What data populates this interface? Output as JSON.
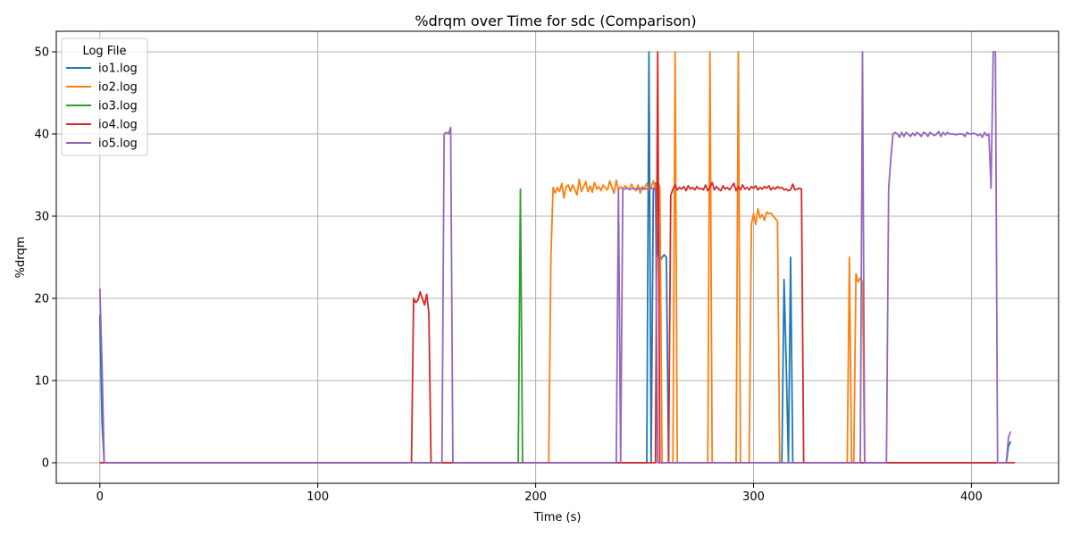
{
  "chart_data": {
    "type": "line",
    "title": "%drqm over Time for sdc (Comparison)",
    "xlabel": "Time (s)",
    "ylabel": "%drqm",
    "xlim": [
      -20,
      440
    ],
    "ylim": [
      -2.5,
      52.5
    ],
    "xticks": [
      0,
      100,
      200,
      300,
      400
    ],
    "yticks": [
      0,
      10,
      20,
      30,
      40,
      50
    ],
    "grid": true,
    "legend": {
      "title": "Log File",
      "placement": "top-left"
    },
    "series": [
      {
        "name": "io1.log",
        "color": "#1f77b4",
        "points": [
          [
            0,
            18
          ],
          [
            1,
            5
          ],
          [
            2,
            0
          ],
          [
            251,
            0
          ],
          [
            252,
            50
          ],
          [
            253,
            0
          ],
          [
            254,
            33
          ],
          [
            255,
            34
          ],
          [
            256,
            25.5
          ],
          [
            257,
            24.5
          ],
          [
            258,
            25
          ],
          [
            259,
            25.3
          ],
          [
            260,
            25
          ],
          [
            261,
            0
          ],
          [
            313,
            0
          ],
          [
            314,
            22.3
          ],
          [
            315,
            12
          ],
          [
            316,
            0
          ],
          [
            317,
            25
          ],
          [
            318,
            0
          ],
          [
            416,
            0
          ],
          [
            417,
            2
          ],
          [
            418,
            2.6
          ]
        ]
      },
      {
        "name": "io2.log",
        "color": "#ff7f0e",
        "points": [
          [
            0,
            0
          ],
          [
            206,
            0
          ],
          [
            207,
            25
          ],
          [
            208,
            33.5
          ],
          [
            209,
            32.8
          ],
          [
            210,
            33.5
          ],
          [
            211,
            33
          ],
          [
            212,
            34
          ],
          [
            213,
            32.2
          ],
          [
            214,
            33.6
          ],
          [
            215,
            33.8
          ],
          [
            216,
            33
          ],
          [
            217,
            33.8
          ],
          [
            218,
            33.2
          ],
          [
            219,
            32.6
          ],
          [
            220,
            34.5
          ],
          [
            221,
            33
          ],
          [
            222,
            33.6
          ],
          [
            223,
            34.2
          ],
          [
            224,
            33
          ],
          [
            225,
            33.7
          ],
          [
            226,
            32.9
          ],
          [
            227,
            34.1
          ],
          [
            228,
            33.3
          ],
          [
            229,
            33.6
          ],
          [
            230,
            33.1
          ],
          [
            231,
            33.8
          ],
          [
            232,
            33.4
          ],
          [
            233,
            33.2
          ],
          [
            234,
            34.3
          ],
          [
            235,
            33.5
          ],
          [
            236,
            32.8
          ],
          [
            237,
            34.4
          ],
          [
            238,
            33.2
          ],
          [
            239,
            33.6
          ],
          [
            240,
            33.3
          ],
          [
            241,
            33.7
          ],
          [
            242,
            33.5
          ],
          [
            243,
            33.2
          ],
          [
            244,
            33.9
          ],
          [
            245,
            33.4
          ],
          [
            246,
            33.1
          ],
          [
            247,
            33.8
          ],
          [
            248,
            32.8
          ],
          [
            249,
            33.6
          ],
          [
            250,
            33.3
          ],
          [
            251,
            34
          ],
          [
            252,
            33.2
          ],
          [
            253,
            33.5
          ],
          [
            254,
            34.3
          ],
          [
            255,
            33.4
          ],
          [
            256,
            34.2
          ],
          [
            257,
            33.5
          ],
          [
            258,
            0
          ],
          [
            263,
            0
          ],
          [
            264,
            50
          ],
          [
            265,
            0
          ],
          [
            279,
            0
          ],
          [
            280,
            50
          ],
          [
            281,
            0
          ],
          [
            292,
            0
          ],
          [
            293,
            50
          ],
          [
            294,
            0
          ],
          [
            298,
            0
          ],
          [
            299,
            29
          ],
          [
            300,
            30.3
          ],
          [
            301,
            29
          ],
          [
            302,
            30.9
          ],
          [
            303,
            29.8
          ],
          [
            304,
            30.2
          ],
          [
            305,
            29.5
          ],
          [
            306,
            30.5
          ],
          [
            307,
            30.3
          ],
          [
            308,
            30.4
          ],
          [
            309,
            30
          ],
          [
            310,
            29.7
          ],
          [
            311,
            29.4
          ],
          [
            312,
            0
          ],
          [
            343,
            0
          ],
          [
            344,
            25
          ],
          [
            345,
            0
          ],
          [
            346,
            0
          ],
          [
            347,
            23
          ],
          [
            348,
            22
          ],
          [
            349,
            22.5
          ],
          [
            350,
            22
          ],
          [
            351,
            0
          ]
        ]
      },
      {
        "name": "io3.log",
        "color": "#2ca02c",
        "points": [
          [
            0,
            0
          ],
          [
            192,
            0
          ],
          [
            193,
            33.3
          ],
          [
            194,
            0
          ]
        ]
      },
      {
        "name": "io4.log",
        "color": "#d62728",
        "points": [
          [
            0,
            0
          ],
          [
            143,
            0
          ],
          [
            144,
            20
          ],
          [
            145,
            19.5
          ],
          [
            146,
            19.8
          ],
          [
            147,
            20.8
          ],
          [
            148,
            20
          ],
          [
            149,
            19.2
          ],
          [
            150,
            20.5
          ],
          [
            151,
            18.2
          ],
          [
            152,
            0
          ],
          [
            156,
            0
          ],
          [
            157,
            0
          ],
          [
            162,
            0
          ],
          [
            163,
            0
          ],
          [
            255,
            0
          ],
          [
            256,
            50
          ],
          [
            257,
            0
          ],
          [
            261,
            0
          ],
          [
            262,
            32.5
          ],
          [
            263,
            33.3
          ],
          [
            264,
            33.8
          ],
          [
            265,
            33.2
          ],
          [
            266,
            33.5
          ],
          [
            267,
            33.3
          ],
          [
            268,
            33.6
          ],
          [
            269,
            33.1
          ],
          [
            270,
            33.7
          ],
          [
            271,
            33.3
          ],
          [
            272,
            33.5
          ],
          [
            273,
            33.2
          ],
          [
            274,
            33.6
          ],
          [
            275,
            33.3
          ],
          [
            276,
            33.4
          ],
          [
            277,
            33.2
          ],
          [
            278,
            33.8
          ],
          [
            279,
            33.1
          ],
          [
            280,
            33.5
          ],
          [
            281,
            34.1
          ],
          [
            282,
            33.2
          ],
          [
            283,
            33.6
          ],
          [
            284,
            33.3
          ],
          [
            285,
            33.1
          ],
          [
            286,
            33.7
          ],
          [
            287,
            33.3
          ],
          [
            288,
            33.5
          ],
          [
            289,
            33.2
          ],
          [
            290,
            33.6
          ],
          [
            291,
            34
          ],
          [
            292,
            33.1
          ],
          [
            293,
            33.6
          ],
          [
            294,
            33.2
          ],
          [
            295,
            33.8
          ],
          [
            296,
            33.3
          ],
          [
            297,
            33.5
          ],
          [
            298,
            33.2
          ],
          [
            299,
            33.6
          ],
          [
            300,
            33.4
          ],
          [
            301,
            33.7
          ],
          [
            302,
            33.2
          ],
          [
            303,
            33.5
          ],
          [
            304,
            33.3
          ],
          [
            305,
            33.6
          ],
          [
            306,
            33.4
          ],
          [
            307,
            33.7
          ],
          [
            308,
            33.2
          ],
          [
            309,
            33.5
          ],
          [
            310,
            33.3
          ],
          [
            311,
            33.6
          ],
          [
            312,
            33.4
          ],
          [
            313,
            33.5
          ],
          [
            314,
            33.2
          ],
          [
            315,
            33.3
          ],
          [
            316,
            33.1
          ],
          [
            317,
            33.2
          ],
          [
            318,
            33.9
          ],
          [
            319,
            33.2
          ],
          [
            320,
            33.3
          ],
          [
            321,
            33.4
          ],
          [
            322,
            33.3
          ],
          [
            323,
            0
          ],
          [
            350,
            0
          ],
          [
            351,
            0
          ],
          [
            420,
            0
          ]
        ]
      },
      {
        "name": "io5.log",
        "color": "#9467bd",
        "points": [
          [
            0,
            21.2
          ],
          [
            1,
            12
          ],
          [
            2,
            0
          ],
          [
            157,
            0
          ],
          [
            158,
            40
          ],
          [
            159,
            40.2
          ],
          [
            160,
            40
          ],
          [
            161,
            40.8
          ],
          [
            162,
            0
          ],
          [
            237,
            0
          ],
          [
            238,
            33.3
          ],
          [
            239,
            0
          ],
          [
            240,
            33.3
          ],
          [
            241,
            33.3
          ],
          [
            242,
            33.4
          ],
          [
            243,
            33.3
          ],
          [
            244,
            33.3
          ],
          [
            245,
            33.4
          ],
          [
            246,
            33.3
          ],
          [
            247,
            33.3
          ],
          [
            248,
            33.4
          ],
          [
            249,
            33.3
          ],
          [
            250,
            33.3
          ],
          [
            251,
            33.3
          ],
          [
            252,
            33.4
          ],
          [
            253,
            33.3
          ],
          [
            254,
            33.4
          ],
          [
            255,
            33.3
          ],
          [
            256,
            0
          ],
          [
            349,
            0
          ],
          [
            350,
            50
          ],
          [
            351,
            0
          ],
          [
            361,
            0
          ],
          [
            362,
            33.3
          ],
          [
            363,
            37
          ],
          [
            364,
            40
          ],
          [
            365,
            40.2
          ],
          [
            366,
            40
          ],
          [
            367,
            39.6
          ],
          [
            368,
            40.2
          ],
          [
            369,
            39.7
          ],
          [
            370,
            40.2
          ],
          [
            371,
            40
          ],
          [
            372,
            39.7
          ],
          [
            373,
            40.1
          ],
          [
            374,
            39.8
          ],
          [
            375,
            40.2
          ],
          [
            376,
            40
          ],
          [
            377,
            39.7
          ],
          [
            378,
            40.2
          ],
          [
            379,
            40.1
          ],
          [
            380,
            39.7
          ],
          [
            381,
            40.2
          ],
          [
            382,
            40
          ],
          [
            383,
            39.8
          ],
          [
            384,
            40
          ],
          [
            385,
            40.3
          ],
          [
            386,
            39.7
          ],
          [
            387,
            40.2
          ],
          [
            388,
            39.9
          ],
          [
            389,
            40.2
          ],
          [
            390,
            40
          ],
          [
            391,
            40
          ],
          [
            392,
            40
          ],
          [
            393,
            39.9
          ],
          [
            394,
            40
          ],
          [
            395,
            40
          ],
          [
            396,
            40
          ],
          [
            397,
            39.7
          ],
          [
            398,
            40.2
          ],
          [
            399,
            40
          ],
          [
            400,
            40
          ],
          [
            401,
            40.1
          ],
          [
            402,
            40
          ],
          [
            403,
            39.8
          ],
          [
            404,
            40
          ],
          [
            405,
            39.6
          ],
          [
            406,
            40.2
          ],
          [
            407,
            39.8
          ],
          [
            408,
            40
          ],
          [
            409,
            33.4
          ],
          [
            410,
            50
          ],
          [
            411,
            50
          ],
          [
            412,
            0
          ],
          [
            416,
            0
          ],
          [
            417,
            3.1
          ],
          [
            418,
            3.8
          ]
        ]
      }
    ]
  }
}
